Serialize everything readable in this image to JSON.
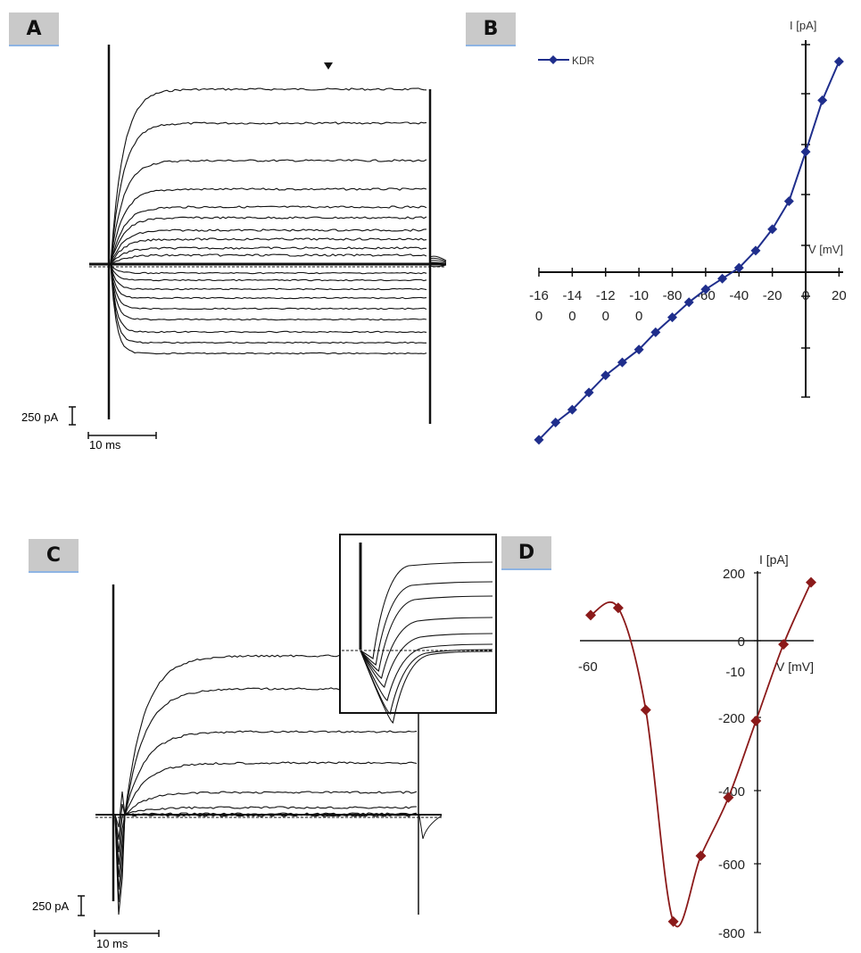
{
  "panels": {
    "A": {
      "label": "A",
      "scale_current": "250 pA",
      "scale_time": "10 ms",
      "n_traces": 16
    },
    "B": {
      "label": "B"
    },
    "C": {
      "label": "C",
      "scale_current": "250 pA",
      "scale_time": "10 ms",
      "n_traces": 8
    },
    "D": {
      "label": "D"
    }
  },
  "chart_data": [
    {
      "panel": "B",
      "type": "line",
      "title": "",
      "xlabel": "V [mV]",
      "ylabel": "I [pA]",
      "legend": "top-left",
      "xlim": [
        -160,
        20
      ],
      "x_ticks": [
        -160,
        -140,
        -120,
        -100,
        -80,
        -60,
        -40,
        -20,
        0,
        20
      ],
      "x_tick_labels_line1": [
        "-16",
        "-14",
        "-12",
        "-10",
        "-80",
        "-60",
        "-40",
        "-20",
        "0",
        "20"
      ],
      "x_tick_labels_line2": [
        "0",
        "0",
        "0",
        "0",
        "",
        "",
        "",
        "",
        "",
        ""
      ],
      "series": [
        {
          "name": "KDR",
          "color": "#1f2e8c",
          "marker": "diamond",
          "x": [
            -160,
            -150,
            -140,
            -130,
            -120,
            -110,
            -100,
            -90,
            -80,
            -70,
            -60,
            -50,
            -40,
            -30,
            -20,
            -10,
            0,
            10,
            20
          ],
          "y": [
            -780,
            -700,
            -640,
            -560,
            -480,
            -420,
            -360,
            -280,
            -210,
            -140,
            -80,
            -30,
            20,
            100,
            200,
            330,
            560,
            800,
            980
          ]
        }
      ]
    },
    {
      "panel": "D",
      "type": "line",
      "title": "",
      "xlabel": "V [mV]",
      "ylabel": "I [pA]",
      "legend": "none",
      "xlim": [
        -60,
        10
      ],
      "ylim": [
        -800,
        200
      ],
      "x_tick_labels": [
        "-60",
        "-10"
      ],
      "y_tick_labels": [
        "200",
        "0",
        "-10",
        "-200",
        "-400",
        "-600",
        "-800"
      ],
      "series": [
        {
          "color": "#8b1a1a",
          "marker": "diamond",
          "x": [
            -60,
            -50,
            -40,
            -30,
            -20,
            -10,
            0,
            10,
            20
          ],
          "y": [
            70,
            90,
            -190,
            -770,
            -590,
            -430,
            -220,
            -10,
            160
          ]
        }
      ]
    }
  ]
}
